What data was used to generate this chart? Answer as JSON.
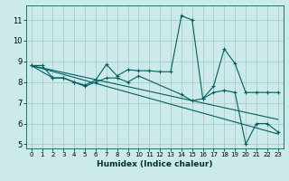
{
  "title": "",
  "xlabel": "Humidex (Indice chaleur)",
  "bg_color": "#cceaea",
  "grid_color": "#aacccc",
  "line_color": "#006060",
  "xlim": [
    -0.5,
    23.5
  ],
  "ylim": [
    4.8,
    11.7
  ],
  "xticks": [
    0,
    1,
    2,
    3,
    4,
    5,
    6,
    7,
    8,
    9,
    10,
    11,
    12,
    13,
    14,
    15,
    16,
    17,
    18,
    19,
    20,
    21,
    22,
    23
  ],
  "yticks": [
    5,
    6,
    7,
    8,
    9,
    10,
    11
  ],
  "series": [
    {
      "x": [
        0,
        1,
        2,
        3,
        4,
        5,
        6,
        7,
        8,
        9,
        10,
        11,
        12,
        13,
        14,
        15,
        16,
        17,
        18,
        19,
        20,
        21,
        22,
        23
      ],
      "y": [
        8.8,
        8.8,
        8.2,
        8.2,
        8.0,
        7.85,
        8.1,
        8.85,
        8.3,
        8.6,
        8.55,
        8.55,
        8.5,
        8.5,
        11.2,
        11.0,
        7.2,
        7.8,
        9.6,
        8.9,
        7.5,
        7.5,
        7.5,
        7.5
      ],
      "marker": "+"
    },
    {
      "x": [
        0,
        2,
        3,
        4,
        5,
        6,
        7,
        8,
        9,
        10,
        14,
        15,
        16,
        17,
        18,
        19,
        20,
        21,
        22,
        23
      ],
      "y": [
        8.8,
        8.2,
        8.2,
        8.0,
        7.8,
        8.0,
        8.2,
        8.2,
        8.0,
        8.3,
        7.4,
        7.1,
        7.2,
        7.5,
        7.6,
        7.5,
        5.0,
        6.0,
        6.0,
        5.6
      ],
      "marker": "+"
    },
    {
      "x": [
        0,
        23
      ],
      "y": [
        8.8,
        6.2
      ],
      "marker": null
    },
    {
      "x": [
        0,
        23
      ],
      "y": [
        8.8,
        5.5
      ],
      "marker": null
    }
  ]
}
